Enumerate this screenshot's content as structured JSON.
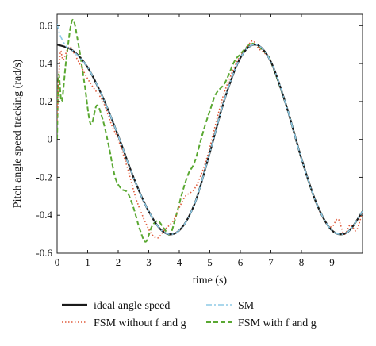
{
  "chart_data": {
    "type": "line",
    "title": "",
    "xlabel": "time (s)",
    "ylabel": "Pitch angle speed tracking (rad/s)",
    "xlim": [
      0,
      10
    ],
    "ylim": [
      -0.6,
      0.66
    ],
    "x_ticks": [
      0,
      1,
      2,
      3,
      4,
      5,
      6,
      7,
      8,
      9
    ],
    "x_tick_labels": [
      "0",
      "1",
      "2",
      "3",
      "4",
      "5",
      "6",
      "7",
      "8",
      "9"
    ],
    "y_ticks": [
      -0.6,
      -0.4,
      -0.2,
      0,
      0.2,
      0.4,
      0.6
    ],
    "y_tick_labels": [
      "-0.6",
      "-0.4",
      "-0.2",
      "0",
      "0.2",
      "0.4",
      "0.6"
    ],
    "grid": false,
    "legend_position": "bottom",
    "series": [
      {
        "name": "ideal angle speed",
        "style": "solid",
        "color": "#1a1a1a",
        "x": [
          0,
          0.5,
          1.0,
          1.5,
          2.0,
          2.5,
          3.0,
          3.5,
          4.0,
          4.5,
          5.0,
          5.5,
          6.0,
          6.5,
          7.0,
          7.5,
          8.0,
          8.5,
          9.0,
          9.5,
          10.0
        ],
        "y": [
          0.5,
          0.47,
          0.38,
          0.22,
          0.02,
          -0.2,
          -0.38,
          -0.49,
          -0.48,
          -0.34,
          -0.07,
          0.22,
          0.43,
          0.5,
          0.41,
          0.18,
          -0.1,
          -0.34,
          -0.48,
          -0.49,
          -0.38
        ]
      },
      {
        "name": "SM",
        "style": "dashdot",
        "color": "#8ecae6",
        "x": [
          0,
          0.1,
          0.3,
          0.5,
          1.0,
          1.5,
          2.0,
          2.5,
          3.0,
          3.5,
          4.0,
          4.5,
          5.0,
          5.5,
          6.0,
          6.5,
          7.0,
          7.5,
          8.0,
          8.5,
          9.0,
          9.5,
          10.0
        ],
        "y": [
          0.61,
          0.55,
          0.49,
          0.47,
          0.38,
          0.22,
          0.02,
          -0.2,
          -0.38,
          -0.49,
          -0.48,
          -0.34,
          -0.07,
          0.22,
          0.43,
          0.5,
          0.41,
          0.18,
          -0.1,
          -0.34,
          -0.48,
          -0.49,
          -0.38
        ]
      },
      {
        "name": "FSM without f and g",
        "style": "dotted",
        "color": "#e05a3a",
        "x": [
          0,
          0.1,
          0.2,
          0.4,
          0.6,
          0.8,
          1.0,
          1.2,
          1.5,
          1.8,
          2.0,
          2.3,
          2.6,
          2.9,
          3.1,
          3.3,
          3.5,
          3.8,
          4.0,
          4.2,
          4.5,
          4.8,
          5.0,
          5.3,
          5.5,
          5.8,
          6.0,
          6.2,
          6.4,
          6.6,
          7.0,
          7.5,
          8.0,
          8.5,
          8.8,
          9.0,
          9.2,
          9.4,
          9.6,
          9.8,
          10.0
        ],
        "y": [
          0.1,
          0.45,
          0.42,
          0.49,
          0.44,
          0.38,
          0.32,
          0.27,
          0.2,
          0.07,
          0.0,
          -0.15,
          -0.32,
          -0.44,
          -0.5,
          -0.52,
          -0.48,
          -0.43,
          -0.36,
          -0.3,
          -0.26,
          -0.15,
          -0.04,
          0.15,
          0.26,
          0.38,
          0.44,
          0.48,
          0.52,
          0.48,
          0.41,
          0.18,
          -0.1,
          -0.34,
          -0.44,
          -0.46,
          -0.42,
          -0.5,
          -0.45,
          -0.48,
          -0.38
        ]
      },
      {
        "name": "FSM with f and g",
        "style": "dashed",
        "color": "#5aa832",
        "x": [
          0,
          0.05,
          0.15,
          0.3,
          0.5,
          0.7,
          0.9,
          1.1,
          1.3,
          1.5,
          1.7,
          1.9,
          2.1,
          2.3,
          2.5,
          2.7,
          2.9,
          3.1,
          3.3,
          3.5,
          3.7,
          3.9,
          4.1,
          4.3,
          4.5,
          4.8,
          5.0,
          5.2,
          5.5,
          5.8,
          6.0,
          6.3,
          6.5,
          6.8,
          7.0,
          7.5,
          8.0,
          8.5,
          9.0,
          9.5,
          10.0
        ],
        "y": [
          0.0,
          0.34,
          0.2,
          0.42,
          0.63,
          0.5,
          0.29,
          0.08,
          0.18,
          0.1,
          -0.04,
          -0.2,
          -0.26,
          -0.28,
          -0.36,
          -0.47,
          -0.54,
          -0.46,
          -0.43,
          -0.47,
          -0.5,
          -0.4,
          -0.28,
          -0.18,
          -0.12,
          0.05,
          0.15,
          0.24,
          0.3,
          0.41,
          0.45,
          0.5,
          0.5,
          0.46,
          0.41,
          0.18,
          -0.1,
          -0.34,
          -0.48,
          -0.49,
          -0.38
        ]
      }
    ]
  }
}
